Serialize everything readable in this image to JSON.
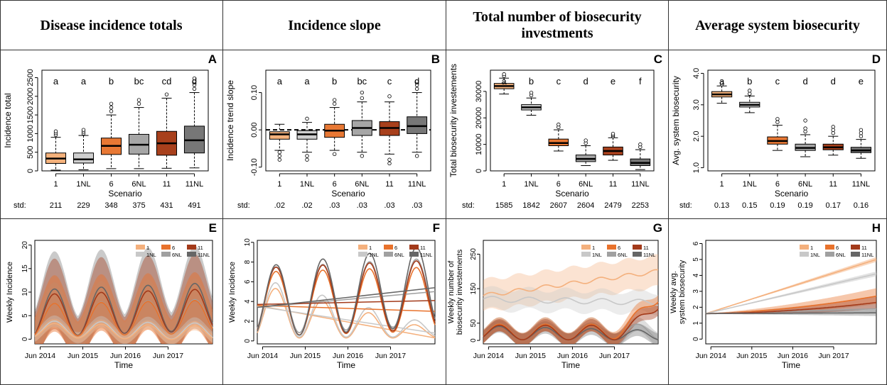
{
  "column_titles": [
    "Disease incidence totals",
    "Incidence slope",
    "Total number of biosecurity investments",
    "Average system biosecurity"
  ],
  "colors": {
    "s1": "#f5b27c",
    "s1NL": "#cfcfcf",
    "s6": "#e87834",
    "s6NL": "#a6a6a6",
    "s11": "#a8401c",
    "s11NL": "#777777",
    "line1": "#f4b07d",
    "line1NL": "#c8c8c8",
    "line6": "#e8722c",
    "line6NL": "#a0a0a0",
    "line11": "#a33a1a",
    "line11NL": "#666666"
  },
  "chart_data": [
    {
      "panel": "A",
      "type": "box",
      "ylabel": "Incidence total",
      "xlabel": "Scenario",
      "categories": [
        "1",
        "1NL",
        "6",
        "6NL",
        "11",
        "11NL"
      ],
      "ylim": [
        0,
        2700
      ],
      "yticks": [
        "0",
        "500",
        "1000",
        "1500",
        "2000",
        "2500"
      ],
      "letters": [
        "a",
        "a",
        "b",
        "bc",
        "cd",
        "d"
      ],
      "boxes": [
        {
          "lw": 20,
          "q1": 200,
          "med": 330,
          "q3": 480,
          "uw": 900,
          "out": [
            960,
            1010,
            1060
          ]
        },
        {
          "lw": 30,
          "q1": 210,
          "med": 310,
          "q3": 480,
          "uw": 950,
          "out": [
            1000,
            1050,
            1100
          ]
        },
        {
          "lw": 60,
          "q1": 440,
          "med": 670,
          "q3": 880,
          "uw": 1500,
          "out": [
            1600,
            1700,
            1800
          ]
        },
        {
          "lw": 60,
          "q1": 450,
          "med": 700,
          "q3": 980,
          "uw": 1700,
          "out": [
            1800,
            1900
          ]
        },
        {
          "lw": 70,
          "q1": 420,
          "med": 740,
          "q3": 1060,
          "uw": 1950,
          "out": [
            2050
          ]
        },
        {
          "lw": 80,
          "q1": 480,
          "med": 820,
          "q3": 1200,
          "uw": 2100,
          "out": [
            2200,
            2300,
            2400,
            2480
          ]
        }
      ],
      "std_label": "std:",
      "std": [
        "211",
        "229",
        "348",
        "375",
        "431",
        "491"
      ]
    },
    {
      "panel": "B",
      "type": "box",
      "ylabel": "Incidence trend slope",
      "xlabel": "Scenario",
      "categories": [
        "1",
        "1NL",
        "6",
        "6NL",
        "11",
        "11NL"
      ],
      "ylim": [
        -0.11,
        0.16
      ],
      "yticks": [
        "-0.10",
        "0.00",
        "0.10"
      ],
      "ytick_values": [
        -0.1,
        0.0,
        0.1
      ],
      "zero_line": 0.0,
      "letters": [
        "a",
        "a",
        "b",
        "bc",
        "c",
        "d"
      ],
      "boxes": [
        {
          "lw": -0.055,
          "q1": -0.025,
          "med": -0.012,
          "q3": -0.005,
          "uw": 0.015,
          "out": [
            -0.06,
            -0.07,
            -0.08
          ]
        },
        {
          "lw": -0.06,
          "q1": -0.025,
          "med": -0.012,
          "q3": -0.002,
          "uw": 0.02,
          "out": [
            -0.07,
            -0.08,
            0.03
          ]
        },
        {
          "lw": -0.055,
          "q1": -0.02,
          "med": -0.002,
          "q3": 0.015,
          "uw": 0.06,
          "out": [
            0.07,
            0.08,
            -0.065
          ]
        },
        {
          "lw": -0.06,
          "q1": -0.015,
          "med": 0.005,
          "q3": 0.025,
          "uw": 0.075,
          "out": [
            0.085,
            0.1,
            -0.07
          ]
        },
        {
          "lw": -0.065,
          "q1": -0.015,
          "med": 0.005,
          "q3": 0.022,
          "uw": 0.075,
          "out": [
            0.09,
            -0.08,
            -0.09
          ]
        },
        {
          "lw": -0.06,
          "q1": -0.01,
          "med": 0.01,
          "q3": 0.035,
          "uw": 0.1,
          "out": [
            0.11,
            0.12,
            0.13,
            -0.07
          ]
        }
      ],
      "std_label": "std:",
      "std": [
        ".02",
        ".02",
        ".03",
        ".03",
        ".03",
        ".03"
      ]
    },
    {
      "panel": "C",
      "type": "box",
      "ylabel": "Total biosecurity investements",
      "xlabel": "Scenario",
      "categories": [
        "1",
        "1NL",
        "6",
        "6NL",
        "11",
        "11NL"
      ],
      "ylim": [
        0,
        38000
      ],
      "yticks": [
        "0",
        "10000",
        "20000",
        "30000"
      ],
      "ytick_values": [
        0,
        10000,
        20000,
        30000
      ],
      "letters": [
        "a",
        "b",
        "c",
        "d",
        "e",
        "f"
      ],
      "boxes": [
        {
          "lw": 29000,
          "q1": 31000,
          "med": 32000,
          "q3": 33000,
          "uw": 35000,
          "out": [
            35800,
            36500
          ]
        },
        {
          "lw": 21000,
          "q1": 23000,
          "med": 24000,
          "q3": 25000,
          "uw": 27500,
          "out": [
            28500,
            29500
          ]
        },
        {
          "lw": 7500,
          "q1": 9500,
          "med": 10500,
          "q3": 12000,
          "uw": 15500,
          "out": [
            16500,
            17500
          ]
        },
        {
          "lw": 2000,
          "q1": 3500,
          "med": 4500,
          "q3": 6000,
          "uw": 9500,
          "out": [
            10500,
            11500
          ]
        },
        {
          "lw": 4000,
          "q1": 6000,
          "med": 7500,
          "q3": 9000,
          "uw": 12500,
          "out": [
            13000,
            13500,
            14000
          ]
        },
        {
          "lw": 500,
          "q1": 2000,
          "med": 3000,
          "q3": 4500,
          "uw": 8000,
          "out": [
            9000,
            10000
          ]
        }
      ],
      "std_label": "std:",
      "std": [
        "1585",
        "1842",
        "2607",
        "2604",
        "2479",
        "2253"
      ]
    },
    {
      "panel": "D",
      "type": "box",
      "ylabel": "Avg. system biosecurity",
      "xlabel": "Scenario",
      "categories": [
        "1",
        "1NL",
        "6",
        "6NL",
        "11",
        "11NL"
      ],
      "ylim": [
        0.9,
        4.1
      ],
      "yticks": [
        "1.0",
        "2.0",
        "3.0",
        "4.0"
      ],
      "ytick_values": [
        1,
        2,
        3,
        4
      ],
      "letters": [
        "a",
        "b",
        "c",
        "d",
        "d",
        "e"
      ],
      "boxes": [
        {
          "lw": 3.05,
          "q1": 3.25,
          "med": 3.33,
          "q3": 3.42,
          "uw": 3.6,
          "out": [
            3.65,
            3.7
          ]
        },
        {
          "lw": 2.75,
          "q1": 2.93,
          "med": 3.0,
          "q3": 3.08,
          "uw": 3.28,
          "out": [
            3.35,
            3.45
          ]
        },
        {
          "lw": 1.55,
          "q1": 1.75,
          "med": 1.85,
          "q3": 1.98,
          "uw": 2.35,
          "out": [
            2.45,
            2.55
          ]
        },
        {
          "lw": 1.35,
          "q1": 1.55,
          "med": 1.63,
          "q3": 1.75,
          "uw": 2.05,
          "out": [
            2.15,
            2.25,
            2.5
          ]
        },
        {
          "lw": 1.4,
          "q1": 1.57,
          "med": 1.65,
          "q3": 1.75,
          "uw": 2.0,
          "out": [
            2.1,
            2.2,
            2.3
          ]
        },
        {
          "lw": 1.3,
          "q1": 1.48,
          "med": 1.55,
          "q3": 1.65,
          "uw": 1.9,
          "out": [
            2.0,
            2.1,
            2.2
          ]
        }
      ],
      "std_label": "std:",
      "std": [
        "0.13",
        "0.15",
        "0.19",
        "0.19",
        "0.17",
        "0.16"
      ]
    },
    {
      "panel": "E",
      "type": "line",
      "ylabel": "Weekly Incidence",
      "xlabel": "Time",
      "xticks": [
        "Jun 2014",
        "Jun 2015",
        "Jun 2016",
        "Jun 2017"
      ],
      "ylim": [
        -1,
        21
      ],
      "yticks": [
        "0",
        "5",
        "10",
        "15",
        "20"
      ],
      "ytick_values": [
        0,
        5,
        10,
        15,
        20
      ],
      "legend": [
        "1",
        "6",
        "11",
        "1NL",
        "6NL",
        "11NL"
      ]
    },
    {
      "panel": "F",
      "type": "line",
      "ylabel": "Weekly Incidence",
      "xlabel": "Time",
      "xticks": [
        "Jun 2014",
        "Jun 2015",
        "Jun 2016",
        "Jun 2017"
      ],
      "ylim": [
        -0.3,
        10.2
      ],
      "yticks": [
        "0",
        "2",
        "4",
        "6",
        "8",
        "10"
      ],
      "ytick_values": [
        0,
        2,
        4,
        6,
        8,
        10
      ],
      "legend": [
        "1",
        "6",
        "11",
        "1NL",
        "6NL",
        "11NL"
      ]
    },
    {
      "panel": "G",
      "type": "line",
      "ylabel": "Weekly number of biosecurity investements",
      "xlabel": "Time",
      "xticks": [
        "Jun 2014",
        "Jun 2015",
        "Jun 2016",
        "Jun 2017"
      ],
      "ylim": [
        -10,
        290
      ],
      "yticks": [
        "0",
        "50",
        "150",
        "250"
      ],
      "ytick_values": [
        0,
        50,
        150,
        250
      ],
      "legend": [
        "1",
        "6",
        "11",
        "1NL",
        "6NL",
        "11NL"
      ]
    },
    {
      "panel": "H",
      "type": "line",
      "ylabel": "Weekly avg. system biosecurity",
      "xlabel": "Time",
      "xticks": [
        "Jun 2014",
        "Jun 2015",
        "Jun 2016",
        "Jun 2017"
      ],
      "ylim": [
        -0.3,
        6.2
      ],
      "yticks": [
        "0",
        "1",
        "2",
        "3",
        "4",
        "5",
        "6"
      ],
      "ytick_values": [
        0,
        1,
        2,
        3,
        4,
        5,
        6
      ],
      "legend": [
        "1",
        "6",
        "11",
        "1NL",
        "6NL",
        "11NL"
      ]
    }
  ]
}
